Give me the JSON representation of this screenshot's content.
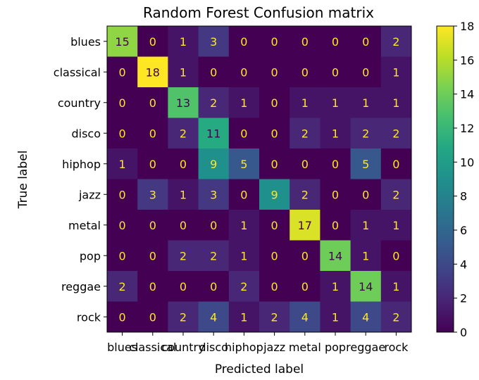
{
  "chart_data": {
    "type": "heatmap",
    "title": "Random Forest Confusion matrix",
    "xlabel": "Predicted label",
    "ylabel": "True label",
    "labels": [
      "blues",
      "classical",
      "country",
      "disco",
      "hiphop",
      "jazz",
      "metal",
      "pop",
      "reggae",
      "rock"
    ],
    "matrix": [
      [
        15,
        0,
        1,
        3,
        0,
        0,
        0,
        0,
        0,
        2
      ],
      [
        0,
        18,
        1,
        0,
        0,
        0,
        0,
        0,
        0,
        1
      ],
      [
        0,
        0,
        13,
        2,
        1,
        0,
        1,
        1,
        1,
        1
      ],
      [
        0,
        0,
        2,
        11,
        0,
        0,
        2,
        1,
        2,
        2
      ],
      [
        1,
        0,
        0,
        9,
        5,
        0,
        0,
        0,
        5,
        0
      ],
      [
        0,
        3,
        1,
        3,
        0,
        9,
        2,
        0,
        0,
        2
      ],
      [
        0,
        0,
        0,
        0,
        1,
        0,
        17,
        0,
        1,
        1
      ],
      [
        0,
        0,
        2,
        2,
        1,
        0,
        0,
        14,
        1,
        0
      ],
      [
        2,
        0,
        0,
        0,
        2,
        0,
        0,
        1,
        14,
        1
      ],
      [
        0,
        0,
        2,
        4,
        1,
        2,
        4,
        1,
        4,
        2
      ]
    ],
    "colormap": "viridis",
    "colorbar": {
      "min": 0,
      "max": 18,
      "ticks": [
        0,
        2,
        4,
        6,
        8,
        10,
        12,
        14,
        16,
        18
      ]
    }
  }
}
